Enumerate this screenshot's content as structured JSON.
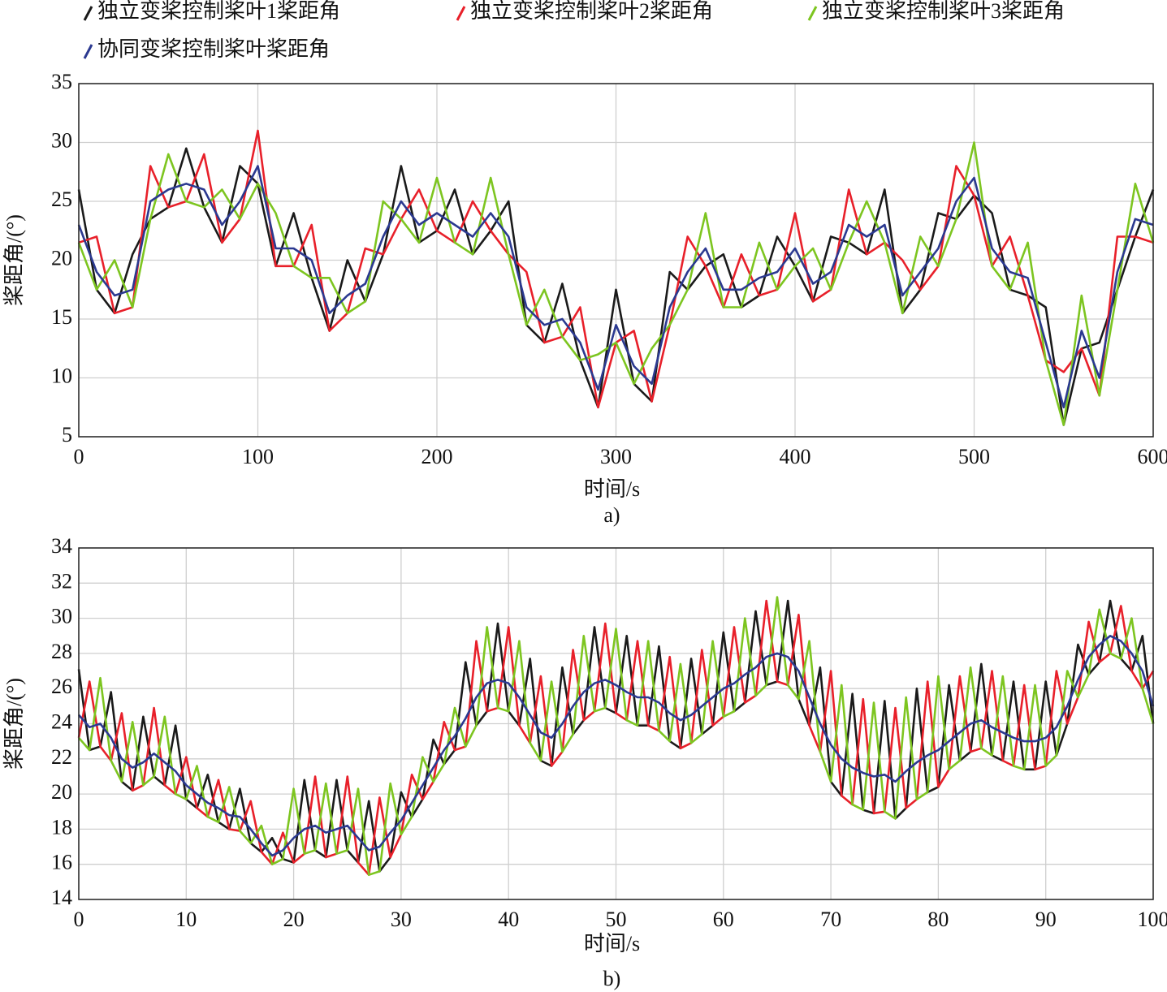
{
  "chart_data": [
    {
      "type": "line",
      "x_label": "时间/s",
      "y_label": "桨距角/(°)",
      "caption": "a)",
      "grid": true,
      "xlim": [
        0,
        600
      ],
      "ylim": [
        5,
        35
      ],
      "xticks": [
        0,
        100,
        200,
        300,
        400,
        500,
        600
      ],
      "yticks": [
        5,
        10,
        15,
        20,
        25,
        30,
        35
      ],
      "x": [
        0,
        10,
        20,
        30,
        40,
        50,
        60,
        70,
        80,
        90,
        100,
        110,
        120,
        130,
        140,
        150,
        160,
        170,
        180,
        190,
        200,
        210,
        220,
        230,
        240,
        250,
        260,
        270,
        280,
        290,
        300,
        310,
        320,
        330,
        340,
        350,
        360,
        370,
        380,
        390,
        400,
        410,
        420,
        430,
        440,
        450,
        460,
        470,
        480,
        490,
        500,
        510,
        520,
        530,
        540,
        550,
        560,
        570,
        580,
        590,
        600
      ],
      "series": [
        {
          "name": "独立变桨控制桨叶1桨距角",
          "color": "#1a1a1a",
          "values": [
            26,
            17.5,
            15.5,
            20.5,
            23.5,
            24.5,
            29.5,
            24.5,
            21.5,
            28,
            26.5,
            19.5,
            24,
            18.5,
            14,
            20,
            16.5,
            20.5,
            28,
            21.5,
            22.5,
            26,
            20.5,
            22.5,
            25,
            14.5,
            13,
            18,
            11.5,
            7.5,
            17.5,
            9.5,
            8,
            19,
            17.5,
            19.5,
            20.5,
            16,
            17,
            22,
            19.5,
            16.5,
            22,
            21.5,
            20.5,
            26,
            15.5,
            17.5,
            24,
            23.5,
            25.5,
            24,
            17.5,
            17,
            16,
            6,
            12.5,
            13,
            17.5,
            22,
            26
          ]
        },
        {
          "name": "独立变桨控制桨叶2桨距角",
          "color": "#e8202a",
          "values": [
            21.5,
            22,
            15.5,
            16,
            28,
            24.5,
            25,
            29,
            21.5,
            23.5,
            31,
            19.5,
            19.5,
            23,
            14,
            15.5,
            21,
            20.5,
            23.5,
            26,
            22.5,
            21.5,
            25,
            22.5,
            20.5,
            19,
            13,
            13.5,
            16,
            7.5,
            13,
            14,
            8,
            14.5,
            22,
            19.5,
            16,
            20.5,
            17,
            17.5,
            24,
            16.5,
            17.5,
            26,
            20.5,
            21.5,
            20,
            17.5,
            19.5,
            28,
            25.5,
            19.5,
            22,
            17,
            11.5,
            10.5,
            12.5,
            8.5,
            22,
            22,
            21.5
          ]
        },
        {
          "name": "独立变桨控制桨叶3桨距角",
          "color": "#7dc520",
          "values": [
            21.5,
            17.5,
            20,
            16,
            23.5,
            29,
            25,
            24.5,
            26,
            23.5,
            26.5,
            24,
            19.5,
            18.5,
            18.5,
            15.5,
            16.5,
            25,
            23.5,
            21.5,
            27,
            21.5,
            20.5,
            27,
            20.5,
            14.5,
            17.5,
            13.5,
            11.5,
            12,
            13,
            9.5,
            12.5,
            14.5,
            17.5,
            24,
            16,
            16,
            21.5,
            17.5,
            19.5,
            21,
            17.5,
            21.5,
            25,
            21.5,
            15.5,
            22,
            19.5,
            23.5,
            30,
            19.5,
            17.5,
            21.5,
            11.5,
            6,
            17,
            8.5,
            17.5,
            26.5,
            21.5
          ]
        },
        {
          "name": "协同变桨控制桨叶桨距角",
          "color": "#2b3990",
          "values": [
            23,
            19,
            17,
            17.5,
            25,
            26,
            26.5,
            26,
            23,
            25,
            28,
            21,
            21,
            20,
            15.5,
            17,
            18,
            22,
            25,
            23,
            24,
            23,
            22,
            24,
            22,
            16,
            14.5,
            15,
            13,
            9,
            14.5,
            11,
            9.5,
            16,
            19,
            21,
            17.5,
            17.5,
            18.5,
            19,
            21,
            18,
            19,
            23,
            22,
            23,
            17,
            19,
            21,
            25,
            27,
            21,
            19,
            18.5,
            13,
            7.5,
            14,
            10,
            19,
            23.5,
            23
          ]
        }
      ]
    },
    {
      "type": "line",
      "x_label": "时间/s",
      "y_label": "桨距角/(°)",
      "caption": "b)",
      "grid": true,
      "xlim": [
        0,
        100
      ],
      "ylim": [
        14,
        34
      ],
      "xticks": [
        0,
        10,
        20,
        30,
        40,
        50,
        60,
        70,
        80,
        90,
        100
      ],
      "yticks": [
        14,
        16,
        18,
        20,
        22,
        24,
        26,
        28,
        30,
        32,
        34
      ],
      "x": [
        0,
        1,
        2,
        3,
        4,
        5,
        6,
        7,
        8,
        9,
        10,
        11,
        12,
        13,
        14,
        15,
        16,
        17,
        18,
        19,
        20,
        21,
        22,
        23,
        24,
        25,
        26,
        27,
        28,
        29,
        30,
        31,
        32,
        33,
        34,
        35,
        36,
        37,
        38,
        39,
        40,
        41,
        42,
        43,
        44,
        45,
        46,
        47,
        48,
        49,
        50,
        51,
        52,
        53,
        54,
        55,
        56,
        57,
        58,
        59,
        60,
        61,
        62,
        63,
        64,
        65,
        66,
        67,
        68,
        69,
        70,
        71,
        72,
        73,
        74,
        75,
        76,
        77,
        78,
        79,
        80,
        81,
        82,
        83,
        84,
        85,
        86,
        87,
        88,
        89,
        90,
        91,
        92,
        93,
        94,
        95,
        96,
        97,
        98,
        99,
        100
      ],
      "series": [
        {
          "color": "#1a1a1a",
          "values": [
            27.1,
            22.5,
            22.7,
            25.8,
            20.7,
            20.2,
            24.4,
            21.0,
            20.5,
            23.9,
            19.7,
            19.2,
            21.1,
            18.4,
            18.0,
            20.3,
            17.2,
            16.7,
            17.5,
            16.3,
            16.1,
            20.8,
            16.8,
            16.4,
            20.8,
            16.8,
            16.1,
            19.6,
            15.6,
            16.4,
            20.1,
            18.7,
            19.7,
            23.1,
            21.7,
            22.5,
            27.5,
            23.9,
            24.7,
            29.7,
            24.7,
            23.9,
            27.7,
            21.9,
            21.6,
            27.2,
            23.4,
            24.2,
            29.5,
            24.9,
            24.6,
            29.0,
            23.9,
            23.9,
            28.4,
            23.0,
            22.6,
            27.7,
            23.4,
            23.9,
            29.2,
            24.7,
            25.2,
            30.4,
            26.2,
            26.4,
            31.0,
            25.4,
            23.9,
            27.2,
            20.7,
            19.9,
            25.7,
            19.1,
            18.9,
            25.3,
            18.6,
            19.2,
            26.0,
            20.1,
            20.4,
            26.2,
            21.9,
            22.4,
            27.4,
            22.2,
            21.9,
            26.4,
            21.4,
            21.4,
            26.4,
            22.2,
            24.0,
            28.5,
            26.8,
            27.5,
            31.0,
            27.7,
            27.0,
            29.0,
            24.0
          ]
        },
        {
          "color": "#e8202a",
          "values": [
            23.2,
            26.4,
            22.7,
            21.9,
            24.6,
            20.2,
            20.5,
            24.9,
            20.5,
            20.0,
            22.1,
            19.2,
            18.7,
            20.8,
            18.0,
            17.9,
            19.6,
            16.7,
            16.0,
            17.8,
            16.1,
            16.6,
            21.0,
            16.4,
            16.6,
            21.0,
            16.1,
            15.4,
            19.8,
            16.4,
            17.7,
            21.1,
            19.7,
            20.7,
            24.1,
            22.5,
            22.7,
            28.7,
            24.7,
            24.9,
            29.5,
            23.9,
            22.9,
            26.7,
            21.6,
            22.4,
            28.2,
            24.2,
            24.7,
            29.7,
            24.6,
            24.2,
            28.7,
            23.9,
            23.6,
            27.8,
            22.6,
            22.9,
            28.2,
            23.9,
            24.4,
            29.5,
            25.2,
            25.6,
            31.0,
            26.4,
            26.2,
            30.2,
            23.9,
            22.4,
            27.0,
            19.9,
            19.4,
            25.4,
            18.9,
            19.0,
            24.9,
            19.2,
            19.7,
            26.4,
            20.4,
            21.4,
            26.7,
            22.4,
            22.6,
            27.0,
            21.9,
            21.6,
            26.2,
            21.4,
            21.6,
            27.0,
            24.0,
            25.5,
            29.8,
            27.5,
            28.0,
            30.7,
            27.0,
            26.0,
            27.0
          ]
        },
        {
          "color": "#7dc520",
          "values": [
            23.2,
            22.5,
            26.6,
            21.9,
            20.7,
            24.1,
            20.5,
            21.0,
            24.4,
            20.0,
            19.7,
            21.6,
            18.7,
            18.4,
            20.4,
            17.9,
            17.2,
            18.2,
            16.0,
            16.3,
            20.3,
            16.6,
            16.8,
            20.6,
            16.6,
            16.8,
            20.3,
            15.4,
            15.6,
            20.6,
            17.7,
            18.7,
            22.1,
            20.7,
            21.7,
            24.9,
            22.7,
            23.9,
            29.5,
            24.9,
            24.7,
            28.7,
            22.9,
            21.9,
            26.4,
            22.4,
            23.4,
            29.0,
            24.7,
            24.9,
            29.4,
            24.2,
            23.9,
            28.7,
            23.6,
            23.0,
            27.4,
            22.9,
            23.4,
            28.7,
            24.4,
            24.7,
            30.0,
            25.6,
            26.2,
            31.2,
            26.2,
            25.4,
            28.7,
            22.4,
            20.7,
            26.2,
            19.4,
            19.1,
            25.2,
            19.0,
            18.6,
            25.5,
            19.7,
            20.1,
            26.7,
            21.4,
            21.9,
            27.2,
            22.6,
            22.2,
            26.7,
            21.6,
            21.4,
            26.2,
            21.6,
            22.2,
            27.0,
            25.5,
            26.8,
            30.5,
            28.0,
            27.7,
            30.0,
            26.0,
            24.0
          ]
        },
        {
          "color": "#2b3990",
          "values": [
            24.5,
            23.8,
            24.0,
            23.2,
            22.0,
            21.5,
            21.8,
            22.3,
            21.8,
            21.3,
            20.5,
            20.0,
            19.5,
            19.2,
            18.8,
            18.7,
            18.0,
            17.2,
            16.5,
            16.8,
            17.5,
            18.0,
            18.2,
            17.8,
            18.0,
            18.2,
            17.5,
            16.8,
            17.0,
            17.8,
            18.5,
            19.5,
            20.5,
            21.5,
            22.5,
            23.3,
            24.3,
            25.5,
            26.3,
            26.5,
            26.3,
            25.5,
            24.5,
            23.5,
            23.2,
            24.0,
            25.0,
            25.8,
            26.3,
            26.5,
            26.2,
            25.8,
            25.5,
            25.5,
            25.2,
            24.6,
            24.2,
            24.5,
            25.0,
            25.5,
            26.0,
            26.3,
            26.8,
            27.2,
            27.8,
            28.0,
            27.8,
            27.0,
            25.5,
            24.0,
            22.8,
            22.0,
            21.5,
            21.2,
            21.0,
            21.1,
            20.7,
            21.3,
            21.8,
            22.2,
            22.5,
            23.0,
            23.5,
            24.0,
            24.2,
            23.8,
            23.5,
            23.2,
            23.0,
            23.0,
            23.2,
            23.8,
            25.0,
            26.5,
            27.8,
            28.5,
            29.0,
            28.7,
            28.0,
            27.0,
            25.0
          ]
        }
      ]
    }
  ]
}
